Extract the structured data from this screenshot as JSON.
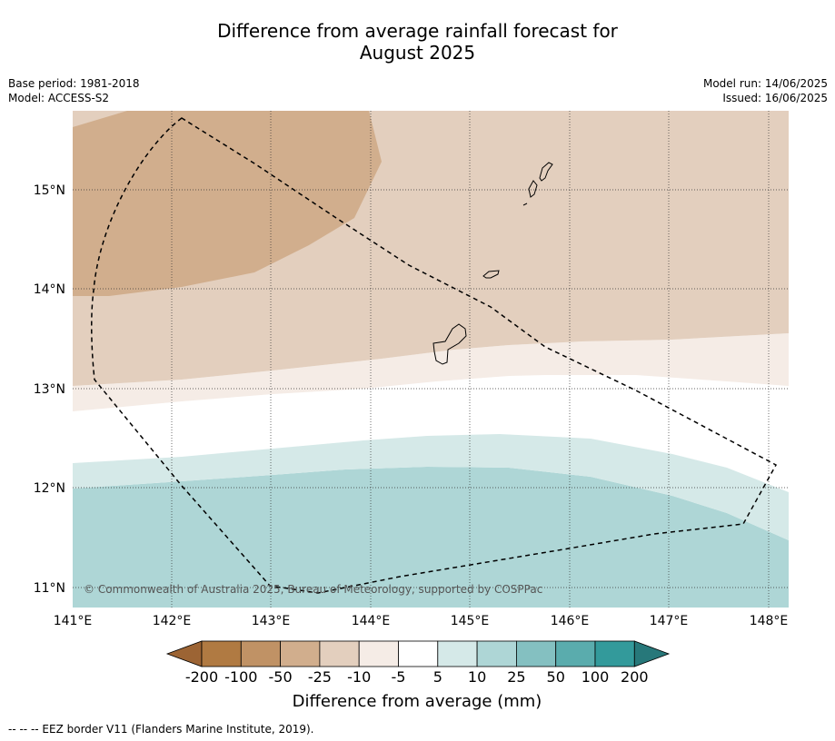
{
  "title": {
    "line1": "Difference from average rainfall forecast for",
    "line2": "August 2025"
  },
  "meta_left": {
    "base_period": "Base period: 1981-2018",
    "model": "Model: ACCESS-S2"
  },
  "meta_right": {
    "model_run": "Model run: 14/06/2025",
    "issued": "Issued: 16/06/2025"
  },
  "map": {
    "lon_labels": [
      "141°E",
      "142°E",
      "143°E",
      "144°E",
      "145°E",
      "146°E",
      "147°E",
      "148°E"
    ],
    "lat_labels": [
      "15°N",
      "14°N",
      "13°N",
      "12°N",
      "11°N"
    ],
    "copyright": "© Commonwealth of Australia 2025, Bureau of Meteorology, supported by COSPPac",
    "colors": {
      "dark_brown_zone": "#d1ae8d",
      "light_brown_zone": "#e3cfbe",
      "pale_zone": "#f5ece6",
      "white_zone": "#ffffff",
      "pale_teal_zone": "#d5e9e8",
      "teal_zone": "#aed6d6"
    }
  },
  "colorbar": {
    "labels": [
      "-200",
      "-100",
      "-50",
      "-25",
      "-10",
      "-5",
      "5",
      "10",
      "25",
      "50",
      "100",
      "200"
    ],
    "colors": [
      "#9c6434",
      "#b07a42",
      "#c09265",
      "#d1ae8d",
      "#e3cfbe",
      "#f5ece6",
      "#ffffff",
      "#d5e9e8",
      "#aed6d6",
      "#84c0c1",
      "#5aacad",
      "#339a9b",
      "#27787a"
    ],
    "title": "Difference from average (mm)"
  },
  "footer": "--  --  -- EEZ border V11 (Flanders Marine Institute, 2019)."
}
